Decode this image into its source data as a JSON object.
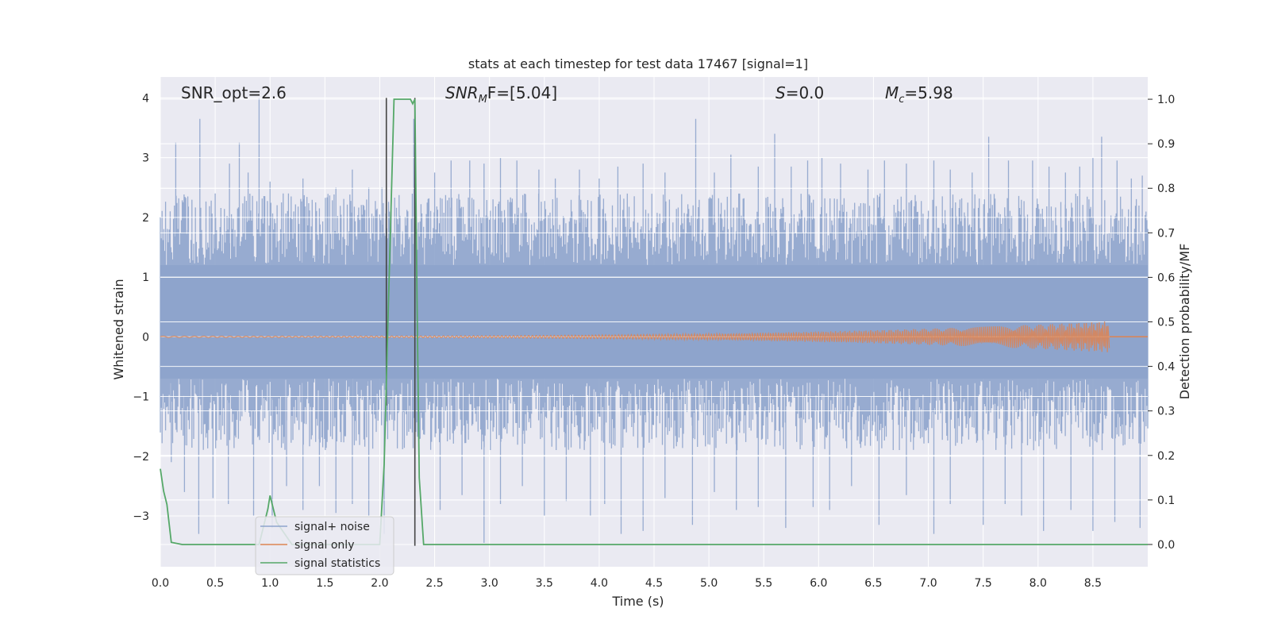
{
  "chart_data": {
    "type": "line",
    "title": "stats at each timestep for test data 17467 [signal=1]",
    "xlabel": "Time (s)",
    "ylabel_left": "Whitened strain",
    "ylabel_right": "Detection probability/MF",
    "xlim": [
      0.0,
      9.0
    ],
    "ylim_left": [
      -3.85,
      4.35
    ],
    "ylim_right": [
      -0.05,
      1.05
    ],
    "x_ticks": [
      "0.0",
      "0.5",
      "1.0",
      "1.5",
      "2.0",
      "2.5",
      "3.0",
      "3.5",
      "4.0",
      "4.5",
      "5.0",
      "5.5",
      "6.0",
      "6.5",
      "7.0",
      "7.5",
      "8.0",
      "8.5"
    ],
    "y_ticks_left": [
      "4",
      "3",
      "2",
      "1",
      "0",
      "−1",
      "−2",
      "−3"
    ],
    "y_ticks_right": [
      "1.0",
      "0.9",
      "0.8",
      "0.7",
      "0.6",
      "0.5",
      "0.4",
      "0.3",
      "0.2",
      "0.1",
      "0.0"
    ],
    "grid": true,
    "legend_position": "lower-left",
    "annotations": {
      "snr_opt": "SNR_opt=2.6",
      "snr_mf_main": "SNR",
      "snr_mf_sub": "M",
      "snr_mf_rest": "F=[5.04]",
      "s_main": "S",
      "s_rest": "=0.0",
      "mc_main": "M",
      "mc_sub": "c",
      "mc_rest": "=5.98"
    },
    "vertical_markers": [
      {
        "x": 2.06,
        "ymin": -1.15,
        "ymax": 4.0,
        "color": "#444444"
      },
      {
        "x": 2.32,
        "ymin": -3.5,
        "ymax": 4.0,
        "color": "#444444"
      }
    ],
    "series": [
      {
        "name": "signal+ noise",
        "color": "#8ea4cc",
        "kind": "noise",
        "band_lower": -1.25,
        "band_upper": 1.75,
        "peaks_upper": [
          [
            0.09,
            2.1
          ],
          [
            0.14,
            3.25
          ],
          [
            0.25,
            2.35
          ],
          [
            0.36,
            3.65
          ],
          [
            0.5,
            2.4
          ],
          [
            0.63,
            2.9
          ],
          [
            0.72,
            3.25
          ],
          [
            0.8,
            2.75
          ],
          [
            0.9,
            4.0
          ],
          [
            1.0,
            2.6
          ],
          [
            1.12,
            2.4
          ],
          [
            1.3,
            2.65
          ],
          [
            1.45,
            2.15
          ],
          [
            1.6,
            2.5
          ],
          [
            1.75,
            2.8
          ],
          [
            1.9,
            2.5
          ],
          [
            2.02,
            2.5
          ],
          [
            2.31,
            3.65
          ],
          [
            2.5,
            2.75
          ],
          [
            2.65,
            2.95
          ],
          [
            2.82,
            2.95
          ],
          [
            2.95,
            2.9
          ],
          [
            3.1,
            3.0
          ],
          [
            3.25,
            2.95
          ],
          [
            3.45,
            2.8
          ],
          [
            3.6,
            2.65
          ],
          [
            3.82,
            2.8
          ],
          [
            4.0,
            2.65
          ],
          [
            4.17,
            2.85
          ],
          [
            4.4,
            2.9
          ],
          [
            4.6,
            2.75
          ],
          [
            4.88,
            3.65
          ],
          [
            5.05,
            2.75
          ],
          [
            5.2,
            3.05
          ],
          [
            5.45,
            2.85
          ],
          [
            5.6,
            3.4
          ],
          [
            5.75,
            2.85
          ],
          [
            5.9,
            2.95
          ],
          [
            6.03,
            3.0
          ],
          [
            6.2,
            2.9
          ],
          [
            6.45,
            2.8
          ],
          [
            6.6,
            2.95
          ],
          [
            6.8,
            2.9
          ],
          [
            7.05,
            2.95
          ],
          [
            7.2,
            2.8
          ],
          [
            7.4,
            2.75
          ],
          [
            7.55,
            3.35
          ],
          [
            7.73,
            2.95
          ],
          [
            7.95,
            2.95
          ],
          [
            8.1,
            2.85
          ],
          [
            8.25,
            2.75
          ],
          [
            8.38,
            2.85
          ],
          [
            8.5,
            3.0
          ],
          [
            8.58,
            3.35
          ],
          [
            8.72,
            2.95
          ],
          [
            8.85,
            2.65
          ],
          [
            8.95,
            2.7
          ]
        ],
        "peaks_lower": [
          [
            0.1,
            -2.1
          ],
          [
            0.22,
            -2.6
          ],
          [
            0.35,
            -3.3
          ],
          [
            0.48,
            -2.7
          ],
          [
            0.62,
            -2.8
          ],
          [
            0.85,
            -3.0
          ],
          [
            1.02,
            -3.2
          ],
          [
            1.15,
            -2.5
          ],
          [
            1.3,
            -2.9
          ],
          [
            1.45,
            -2.5
          ],
          [
            1.6,
            -2.95
          ],
          [
            1.75,
            -2.8
          ],
          [
            1.9,
            -3.0
          ],
          [
            2.04,
            -3.3
          ],
          [
            2.55,
            -2.9
          ],
          [
            2.75,
            -2.65
          ],
          [
            2.95,
            -3.45
          ],
          [
            3.1,
            -2.8
          ],
          [
            3.3,
            -2.5
          ],
          [
            3.5,
            -3.0
          ],
          [
            3.7,
            -2.75
          ],
          [
            3.92,
            -3.0
          ],
          [
            4.05,
            -2.8
          ],
          [
            4.2,
            -3.3
          ],
          [
            4.4,
            -3.25
          ],
          [
            4.6,
            -2.7
          ],
          [
            4.85,
            -3.15
          ],
          [
            5.05,
            -2.6
          ],
          [
            5.25,
            -2.9
          ],
          [
            5.45,
            -2.85
          ],
          [
            5.7,
            -3.2
          ],
          [
            5.95,
            -2.85
          ],
          [
            6.1,
            -2.9
          ],
          [
            6.3,
            -2.5
          ],
          [
            6.55,
            -3.15
          ],
          [
            6.8,
            -2.65
          ],
          [
            7.05,
            -3.3
          ],
          [
            7.2,
            -2.8
          ],
          [
            7.5,
            -3.15
          ],
          [
            7.7,
            -2.8
          ],
          [
            7.85,
            -3.0
          ],
          [
            8.05,
            -3.25
          ],
          [
            8.3,
            -2.9
          ],
          [
            8.5,
            -3.25
          ],
          [
            8.7,
            -3.1
          ],
          [
            8.93,
            -3.2
          ]
        ]
      },
      {
        "name": "signal only",
        "color": "#dd8452",
        "kind": "chirp",
        "start_x": 0.0,
        "end_x": 8.65,
        "max_amplitude": 0.25
      },
      {
        "name": "signal statistics",
        "color": "#55a868",
        "axis": "right",
        "x": [
          0.0,
          0.03,
          0.06,
          0.1,
          0.2,
          0.5,
          0.9,
          0.98,
          1.0,
          1.06,
          1.2,
          1.5,
          1.85,
          2.0,
          2.04,
          2.08,
          2.13,
          2.2,
          2.28,
          2.3,
          2.32,
          2.34,
          2.36,
          2.4,
          2.5,
          3.0,
          6.0,
          9.0
        ],
        "y": [
          0.17,
          0.12,
          0.09,
          0.005,
          0.0,
          0.0,
          0.0,
          0.08,
          0.11,
          0.05,
          0.0,
          0.0,
          0.0,
          0.0,
          0.18,
          0.55,
          1.0,
          1.0,
          1.0,
          0.99,
          1.0,
          0.55,
          0.15,
          0.0,
          0.0,
          0.0,
          0.0,
          0.0
        ]
      }
    ]
  }
}
